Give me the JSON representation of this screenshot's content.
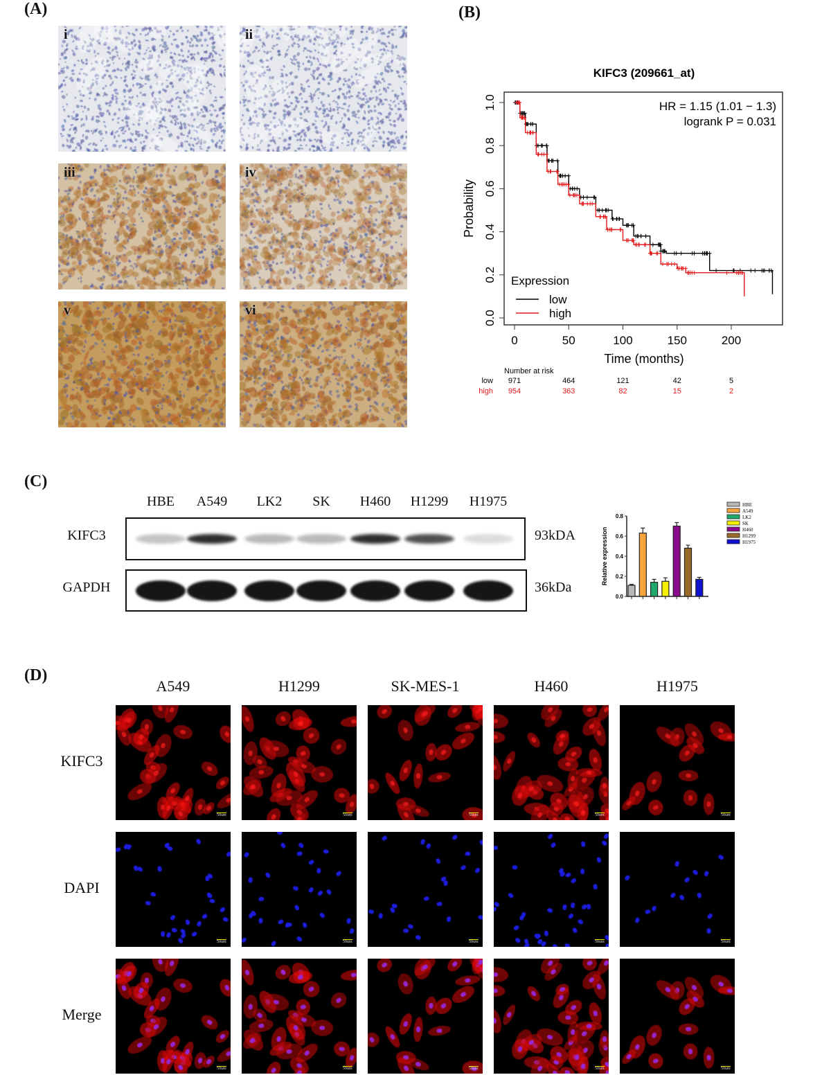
{
  "panels": {
    "A": "(A)",
    "B": "(B)",
    "C": "(C)",
    "D": "(D)"
  },
  "ihc": {
    "labels": [
      "i",
      "ii",
      "iii",
      "iv",
      "v",
      "vi"
    ],
    "staining_level": [
      0,
      0,
      0.45,
      0.3,
      0.85,
      0.65
    ]
  },
  "chart_data": [
    {
      "type": "line",
      "title": "KIFC3 (209661_at)",
      "xlabel": "Time (months)",
      "ylabel": "Probability",
      "xlim": [
        0,
        240
      ],
      "ylim": [
        0,
        1
      ],
      "xticks": [
        "0",
        "50",
        "100",
        "150",
        "200"
      ],
      "yticks": [
        "0.0",
        "0.2",
        "0.4",
        "0.6",
        "0.8",
        "1.0"
      ],
      "annotations": [
        "HR = 1.15 (1.01 − 1.3)",
        "logrank P = 0.031"
      ],
      "legend_title": "Expression",
      "legend_position": "bottom-left",
      "grid": false,
      "series": [
        {
          "name": "low",
          "color": "#000000",
          "x": [
            0,
            5,
            10,
            20,
            30,
            40,
            50,
            60,
            75,
            90,
            100,
            110,
            125,
            135,
            140,
            175,
            180,
            228,
            238
          ],
          "y": [
            1.0,
            0.95,
            0.9,
            0.8,
            0.73,
            0.66,
            0.6,
            0.56,
            0.5,
            0.46,
            0.43,
            0.38,
            0.34,
            0.31,
            0.3,
            0.3,
            0.22,
            0.22,
            0.11
          ]
        },
        {
          "name": "high",
          "color": "#e41a1c",
          "x": [
            0,
            5,
            10,
            20,
            30,
            40,
            50,
            60,
            75,
            85,
            100,
            110,
            125,
            135,
            150,
            158,
            205,
            212
          ],
          "y": [
            1.0,
            0.93,
            0.86,
            0.76,
            0.68,
            0.62,
            0.57,
            0.53,
            0.47,
            0.41,
            0.36,
            0.34,
            0.3,
            0.25,
            0.23,
            0.21,
            0.21,
            0.1
          ]
        }
      ],
      "risk_table": {
        "title": "Number at risk",
        "rows": [
          {
            "label": "low",
            "color": "#000000",
            "values": [
              "971",
              "464",
              "121",
              "42",
              "5"
            ]
          },
          {
            "label": "high",
            "color": "#e41a1c",
            "values": [
              "954",
              "363",
              "82",
              "15",
              "2"
            ]
          }
        ]
      }
    },
    {
      "type": "bar",
      "ylabel": "Relative expression",
      "ylim": [
        0,
        0.8
      ],
      "yticks": [
        "0.0",
        "0.2",
        "0.4",
        "0.6",
        "0.8"
      ],
      "categories": [
        "HBE",
        "A549",
        "LK2",
        "SK",
        "H460",
        "H1299",
        "H1975"
      ],
      "values": [
        0.11,
        0.63,
        0.14,
        0.15,
        0.7,
        0.48,
        0.17
      ],
      "errors": [
        0.01,
        0.05,
        0.03,
        0.035,
        0.035,
        0.03,
        0.02
      ],
      "colors": [
        "#b8b8b8",
        "#f7a43c",
        "#1faa6b",
        "#f5f000",
        "#8b0a8b",
        "#9a6a2a",
        "#1010d0"
      ],
      "legend_position": "right"
    }
  ],
  "western": {
    "lanes": [
      "HBE",
      "A549",
      "LK2",
      "SK",
      "H460",
      "H1299",
      "H1975"
    ],
    "rows": [
      {
        "protein": "KIFC3",
        "size": "93kDA",
        "intensity": [
          0.25,
          0.9,
          0.3,
          0.3,
          0.9,
          0.75,
          0.15
        ]
      },
      {
        "protein": "GAPDH",
        "size": "36kDa",
        "intensity": [
          1,
          1,
          1,
          1,
          1,
          1,
          1
        ]
      }
    ]
  },
  "if": {
    "columns": [
      "A549",
      "H1299",
      "SK-MES-1",
      "H460",
      "H1975"
    ],
    "rows": [
      "KIFC3",
      "DAPI",
      "Merge"
    ],
    "scale_bar": "50um"
  }
}
